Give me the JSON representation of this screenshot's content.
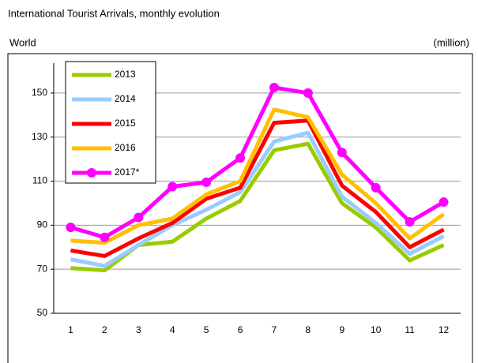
{
  "chart_data": {
    "type": "line",
    "title": "International Tourist Arrivals, monthly evolution",
    "subtitle": "World",
    "y_label": "(million)",
    "categories": [
      "1",
      "2",
      "3",
      "4",
      "5",
      "6",
      "7",
      "8",
      "9",
      "10",
      "11",
      "12"
    ],
    "series": [
      {
        "name": "2013",
        "color": "#99cc00",
        "values": [
          70.5,
          69.5,
          81,
          82.5,
          93,
          101,
          124,
          127,
          100,
          89,
          74,
          81
        ]
      },
      {
        "name": "2014",
        "color": "#99ccff",
        "values": [
          74.5,
          71.5,
          81,
          90,
          97,
          105,
          128,
          132,
          103,
          91,
          77,
          85
        ]
      },
      {
        "name": "2015",
        "color": "#ff0000",
        "values": [
          78.5,
          76,
          84,
          91,
          102,
          107,
          136.5,
          137.5,
          108,
          96,
          80,
          88
        ]
      },
      {
        "name": "2016",
        "color": "#ffc000",
        "values": [
          83,
          82,
          90,
          93,
          104,
          110,
          142.5,
          139,
          113,
          100,
          84,
          95
        ]
      },
      {
        "name": "2017*",
        "color": "#ff00ff",
        "markers": true,
        "values": [
          89,
          84.5,
          93.5,
          107.5,
          109.5,
          120.5,
          152.5,
          150,
          123,
          107,
          91.5,
          100.5
        ]
      }
    ],
    "ylim": [
      50,
      160
    ],
    "yticks": [
      50,
      70,
      90,
      110,
      130,
      150
    ],
    "grid": true,
    "legend": "upper left"
  }
}
